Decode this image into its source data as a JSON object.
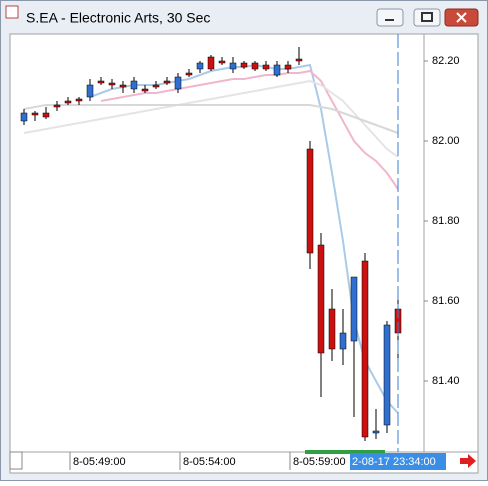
{
  "chart_data": {
    "type": "candlestick",
    "title": "S.EA - Electronic Arts, 30 Sec",
    "categories": [
      null,
      null,
      null,
      null,
      "8-05:49:00",
      null,
      null,
      null,
      null,
      null,
      null,
      null,
      null,
      null,
      "8-05:54:00",
      null,
      null,
      null,
      null,
      null,
      null,
      null,
      null,
      null,
      "8-05:59:00",
      null,
      null,
      null,
      null,
      null,
      null,
      null,
      null,
      null,
      null
    ],
    "cursor_label": "2-08-17 23:34:00",
    "up_color": "#2f6fd0",
    "down_color": "#cc1010",
    "open": [
      82.05,
      82.07,
      82.07,
      82.09,
      82.1,
      82.105,
      82.11,
      82.15,
      82.145,
      82.14,
      82.13,
      82.13,
      82.14,
      82.15,
      82.13,
      82.17,
      82.18,
      82.21,
      82.2,
      82.18,
      82.195,
      82.195,
      82.19,
      82.165,
      82.19,
      82.205,
      81.98,
      81.74,
      81.58,
      81.48,
      81.5,
      81.7,
      81.27,
      81.29,
      81.58
    ],
    "high": [
      82.08,
      82.075,
      82.085,
      82.1,
      82.11,
      82.11,
      82.155,
      82.16,
      82.155,
      82.15,
      82.16,
      82.14,
      82.15,
      82.16,
      82.17,
      82.18,
      82.2,
      82.215,
      82.21,
      82.21,
      82.2,
      82.2,
      82.2,
      82.2,
      82.2,
      82.235,
      82.0,
      81.77,
      81.63,
      81.58,
      81.66,
      81.72,
      81.33,
      81.55,
      81.61
    ],
    "low": [
      82.04,
      82.05,
      82.055,
      82.075,
      82.09,
      82.09,
      82.1,
      82.14,
      82.13,
      82.12,
      82.12,
      82.12,
      82.13,
      82.14,
      82.12,
      82.16,
      82.17,
      82.175,
      82.19,
      82.17,
      82.18,
      82.175,
      82.175,
      82.16,
      82.17,
      82.19,
      81.68,
      81.36,
      81.45,
      81.44,
      81.31,
      81.25,
      81.255,
      81.27,
      81.43
    ],
    "close": [
      82.07,
      82.065,
      82.06,
      82.085,
      82.095,
      82.1,
      82.14,
      82.145,
      82.14,
      82.135,
      82.15,
      82.125,
      82.135,
      82.145,
      82.16,
      82.165,
      82.195,
      82.18,
      82.195,
      82.195,
      82.185,
      82.18,
      82.18,
      82.19,
      82.18,
      82.2,
      81.72,
      81.47,
      81.48,
      81.52,
      81.66,
      81.26,
      81.275,
      81.54,
      81.52
    ],
    "lines": [
      {
        "color": "#a9cbe8",
        "values": [
          null,
          null,
          null,
          null,
          null,
          null,
          82.11,
          82.12,
          82.13,
          82.135,
          82.14,
          82.14,
          82.14,
          82.145,
          82.15,
          82.155,
          82.165,
          82.175,
          82.18,
          82.185,
          82.185,
          82.19,
          82.185,
          82.18,
          82.18,
          82.185,
          82.19,
          82.08,
          81.92,
          81.75,
          81.55,
          81.45,
          81.4,
          81.35,
          81.32
        ]
      },
      {
        "color": "#f2b6cc",
        "values": [
          null,
          null,
          null,
          null,
          null,
          null,
          null,
          82.1,
          82.105,
          82.11,
          82.115,
          82.12,
          82.12,
          82.125,
          82.13,
          82.135,
          82.14,
          82.145,
          82.15,
          82.155,
          82.155,
          82.16,
          82.165,
          82.165,
          82.17,
          82.17,
          82.175,
          82.15,
          82.1,
          82.05,
          82.0,
          81.97,
          81.95,
          81.92,
          81.88
        ]
      },
      {
        "color": "#e4e4e4",
        "values": [
          82.02,
          82.025,
          82.03,
          82.035,
          82.04,
          82.045,
          82.05,
          82.055,
          82.06,
          82.065,
          82.07,
          82.075,
          82.08,
          82.085,
          82.09,
          82.095,
          82.1,
          82.105,
          82.11,
          82.115,
          82.12,
          82.125,
          82.13,
          82.135,
          82.14,
          82.145,
          82.15,
          82.14,
          82.12,
          82.1,
          82.07,
          82.04,
          82.01,
          81.98,
          81.96
        ]
      },
      {
        "color": "#d8d8d8",
        "values": [
          82.08,
          82.085,
          82.09,
          82.09,
          82.09,
          82.09,
          82.09,
          82.09,
          82.09,
          82.09,
          82.09,
          82.09,
          82.09,
          82.09,
          82.09,
          82.09,
          82.09,
          82.09,
          82.09,
          82.09,
          82.09,
          82.09,
          82.09,
          82.09,
          82.09,
          82.09,
          82.09,
          82.085,
          82.08,
          82.07,
          82.06,
          82.05,
          82.04,
          82.03,
          82.02
        ]
      }
    ],
    "ylim": [
      81.2275,
      82.265
    ],
    "yticks": [
      {
        "value": 81.4,
        "label": "81.40"
      },
      {
        "value": 81.6,
        "label": "81.60"
      },
      {
        "value": 81.8,
        "label": "81.80"
      },
      {
        "value": 82,
        "label": "82.00"
      },
      {
        "value": 82.2,
        "label": "82.20"
      }
    ]
  }
}
